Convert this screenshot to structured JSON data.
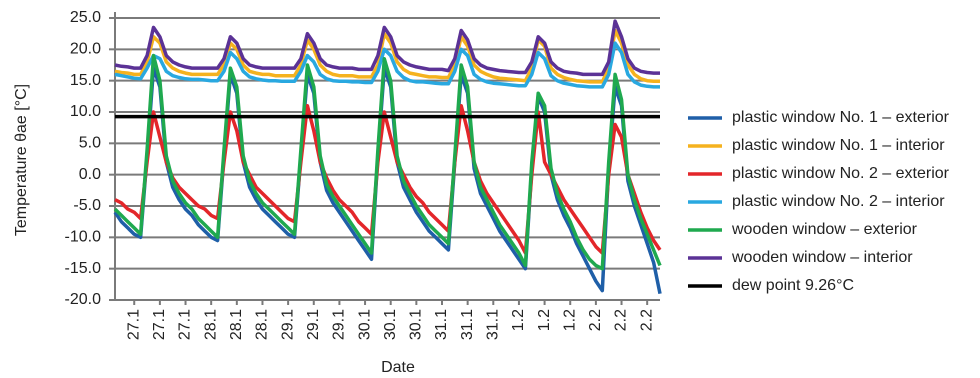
{
  "chart_data": {
    "type": "line",
    "xlabel": "Date",
    "ylabel": "Temperature θae [°C]",
    "xlim": [
      0,
      170
    ],
    "ylim": [
      -20,
      25
    ],
    "grid": true,
    "legend": "right",
    "yticks": [
      {
        "value": 25,
        "label": "25.0"
      },
      {
        "value": 20,
        "label": "20.0"
      },
      {
        "value": 15,
        "label": "15.0"
      },
      {
        "value": 10,
        "label": "10.0"
      },
      {
        "value": 5,
        "label": "5.0"
      },
      {
        "value": 0,
        "label": "0.0"
      },
      {
        "value": -5,
        "label": "-5.0"
      },
      {
        "value": -10,
        "label": "-10.0"
      },
      {
        "value": -15,
        "label": "-15.0"
      },
      {
        "value": -20,
        "label": "-20.0"
      }
    ],
    "xticks": [
      {
        "value": 6,
        "label": "27.1"
      },
      {
        "value": 14,
        "label": "27.1"
      },
      {
        "value": 22,
        "label": "27.1"
      },
      {
        "value": 30,
        "label": "28.1"
      },
      {
        "value": 38,
        "label": "28.1"
      },
      {
        "value": 46,
        "label": "28.1"
      },
      {
        "value": 54,
        "label": "29.1"
      },
      {
        "value": 62,
        "label": "29.1"
      },
      {
        "value": 70,
        "label": "29.1"
      },
      {
        "value": 78,
        "label": "30.1"
      },
      {
        "value": 86,
        "label": "30.1"
      },
      {
        "value": 94,
        "label": "30.1"
      },
      {
        "value": 102,
        "label": "31.1"
      },
      {
        "value": 110,
        "label": "31.1"
      },
      {
        "value": 118,
        "label": "31.1"
      },
      {
        "value": 126,
        "label": "1.2"
      },
      {
        "value": 134,
        "label": "1.2"
      },
      {
        "value": 142,
        "label": "1.2"
      },
      {
        "value": 150,
        "label": "2.2"
      },
      {
        "value": 158,
        "label": "2.2"
      },
      {
        "value": 166,
        "label": "2.2"
      }
    ],
    "x": [
      0,
      2,
      4,
      6,
      8,
      10,
      12,
      14,
      16,
      18,
      20,
      22,
      24,
      26,
      28,
      30,
      32,
      34,
      36,
      38,
      40,
      42,
      44,
      46,
      48,
      50,
      52,
      54,
      56,
      58,
      60,
      62,
      64,
      66,
      68,
      70,
      72,
      74,
      76,
      78,
      80,
      82,
      84,
      86,
      88,
      90,
      92,
      94,
      96,
      98,
      100,
      102,
      104,
      106,
      108,
      110,
      112,
      114,
      116,
      118,
      120,
      122,
      124,
      126,
      128,
      130,
      132,
      134,
      136,
      138,
      140,
      142,
      144,
      146,
      148,
      150,
      152,
      154,
      156,
      158,
      160,
      162,
      164,
      166,
      168,
      170
    ],
    "series": [
      {
        "name": "plastic window No. 1 – exterior",
        "color": "#1f5fa8",
        "values": [
          -6,
          -7.5,
          -8.5,
          -9.5,
          -10,
          3,
          17,
          14,
          2,
          -2,
          -4,
          -5.5,
          -6.5,
          -8,
          -9,
          -10,
          -10.5,
          3,
          16,
          13,
          2,
          -2,
          -4,
          -5.5,
          -6.5,
          -7.5,
          -8.5,
          -9.5,
          -10,
          3,
          16,
          13,
          2,
          -2.5,
          -4.5,
          -6,
          -7.5,
          -9,
          -10.5,
          -12,
          -13.5,
          3,
          17,
          14,
          2,
          -2,
          -4,
          -6,
          -7.5,
          -9,
          -10,
          -11,
          -12,
          2,
          16,
          13,
          1,
          -3,
          -5,
          -7,
          -9,
          -10.5,
          -12,
          -13.5,
          -15,
          1,
          12.5,
          10,
          0,
          -4,
          -6.5,
          -8.5,
          -11,
          -13,
          -15,
          -17,
          -18.5,
          1,
          14,
          11,
          -1,
          -5,
          -8,
          -11,
          -14,
          -19
        ]
      },
      {
        "name": "plastic window No. 1 – interior",
        "color": "#f5b21e",
        "values": [
          16.5,
          16.3,
          16.2,
          16,
          16,
          18,
          22,
          21,
          18,
          17,
          16.5,
          16.2,
          16,
          16,
          16,
          16,
          16,
          17.5,
          21,
          20,
          17.5,
          16.5,
          16.2,
          16,
          16,
          15.8,
          15.8,
          15.8,
          15.8,
          17.5,
          21.5,
          20,
          17.5,
          16.5,
          16,
          15.8,
          15.8,
          15.8,
          15.6,
          15.6,
          15.6,
          17.5,
          22.5,
          21,
          18,
          16.8,
          16.2,
          16,
          15.8,
          15.6,
          15.6,
          15.5,
          15.5,
          17.5,
          22,
          20.5,
          17.5,
          16.5,
          16,
          15.6,
          15.4,
          15.3,
          15.2,
          15.1,
          15,
          17,
          21.5,
          20.5,
          17,
          16,
          15.5,
          15.2,
          15,
          14.9,
          14.8,
          14.8,
          14.8,
          17,
          23,
          21,
          17.5,
          16,
          15.3,
          15,
          14.9,
          14.9
        ]
      },
      {
        "name": "plastic window No. 2 – exterior",
        "color": "#e3262a",
        "values": [
          -4,
          -4.5,
          -5.5,
          -6,
          -7,
          2,
          10,
          6,
          2,
          -0.5,
          -2,
          -3,
          -4,
          -5,
          -5.5,
          -6.5,
          -7,
          2,
          10,
          7,
          2,
          0,
          -2,
          -3,
          -4,
          -5,
          -6,
          -7,
          -7.5,
          2,
          11,
          7,
          2,
          -0.5,
          -2.5,
          -4,
          -5,
          -6,
          -7.5,
          -8.5,
          -9.5,
          2,
          10,
          6,
          2,
          0,
          -2,
          -3.5,
          -4.5,
          -6,
          -7,
          -8,
          -9,
          2,
          11,
          7,
          2,
          -1,
          -3,
          -4.5,
          -6,
          -7.5,
          -9,
          -10.5,
          -12.5,
          0,
          10,
          2,
          0,
          -2,
          -4,
          -5.5,
          -7,
          -8.5,
          -10,
          -11.5,
          -12.5,
          0,
          8,
          6,
          0,
          -3,
          -6,
          -8.5,
          -10.5,
          -12
        ]
      },
      {
        "name": "plastic window No. 2 – interior",
        "color": "#29a8e0",
        "values": [
          16,
          15.8,
          15.6,
          15.4,
          15.3,
          17,
          19,
          18.5,
          16.5,
          15.8,
          15.5,
          15.3,
          15.2,
          15.2,
          15.1,
          15,
          15,
          16.5,
          19.5,
          18.5,
          16.5,
          15.6,
          15.3,
          15.1,
          15,
          15,
          14.9,
          14.9,
          14.9,
          16.5,
          19,
          18,
          16,
          15.3,
          15,
          14.9,
          14.9,
          14.8,
          14.8,
          14.7,
          14.7,
          16.5,
          20,
          19,
          16.5,
          15.5,
          15,
          14.8,
          14.8,
          14.7,
          14.6,
          14.5,
          14.5,
          16.5,
          20,
          19,
          16,
          15.2,
          14.8,
          14.6,
          14.5,
          14.4,
          14.3,
          14.2,
          14.2,
          16,
          19.5,
          18.5,
          15.8,
          15,
          14.6,
          14.4,
          14.2,
          14.1,
          14,
          14,
          14,
          16,
          21,
          19.5,
          16,
          14.8,
          14.3,
          14.1,
          14,
          14
        ]
      },
      {
        "name": "wooden window – exterior",
        "color": "#1fa94f",
        "values": [
          -5.5,
          -6.5,
          -7.5,
          -8.5,
          -9.5,
          4,
          19,
          15,
          3,
          -1,
          -3,
          -4.5,
          -5.5,
          -7,
          -8,
          -9,
          -10,
          4,
          17,
          14,
          3,
          -1,
          -3,
          -4.5,
          -5.5,
          -6.5,
          -7.5,
          -8.5,
          -9.5,
          4,
          17.5,
          14,
          3,
          -1.5,
          -3.5,
          -5,
          -6.5,
          -8,
          -9.5,
          -11,
          -12.5,
          4,
          18.5,
          15,
          3,
          -1,
          -3,
          -5,
          -6.5,
          -8,
          -9,
          -10,
          -11,
          3,
          17.5,
          14,
          2,
          -2,
          -4,
          -6,
          -8,
          -9.5,
          -11,
          -12.5,
          -14.5,
          2,
          13,
          11,
          1,
          -3,
          -5.5,
          -7.5,
          -10,
          -12,
          -13.5,
          -14.5,
          -15,
          2,
          16,
          12,
          0,
          -4,
          -7,
          -9.5,
          -12,
          -14.5
        ]
      },
      {
        "name": "wooden window – interior",
        "color": "#5b3296",
        "values": [
          17.5,
          17.3,
          17.2,
          17,
          17,
          19,
          23.5,
          22,
          19,
          18,
          17.5,
          17.2,
          17,
          17,
          17,
          17,
          17,
          18.5,
          22,
          21,
          18.5,
          17.5,
          17.2,
          17,
          17,
          17,
          17,
          17,
          17,
          18.5,
          22.5,
          21,
          18.5,
          17.5,
          17.2,
          17,
          17,
          17,
          16.8,
          16.8,
          16.8,
          19,
          23.5,
          22,
          19,
          18,
          17.5,
          17.2,
          17,
          16.8,
          16.8,
          16.8,
          16.6,
          18.5,
          23,
          21.5,
          18.5,
          17.5,
          17,
          16.8,
          16.6,
          16.5,
          16.4,
          16.3,
          16.3,
          18,
          22,
          21,
          18,
          17,
          16.5,
          16.3,
          16.2,
          16,
          16,
          16,
          16,
          18,
          24.5,
          22,
          18.5,
          17,
          16.5,
          16.3,
          16.2,
          16.2
        ]
      },
      {
        "name": "dew point 9.26°C",
        "color": "#000000",
        "x": [
          0,
          170
        ],
        "values": [
          9.26,
          9.26
        ]
      }
    ]
  }
}
